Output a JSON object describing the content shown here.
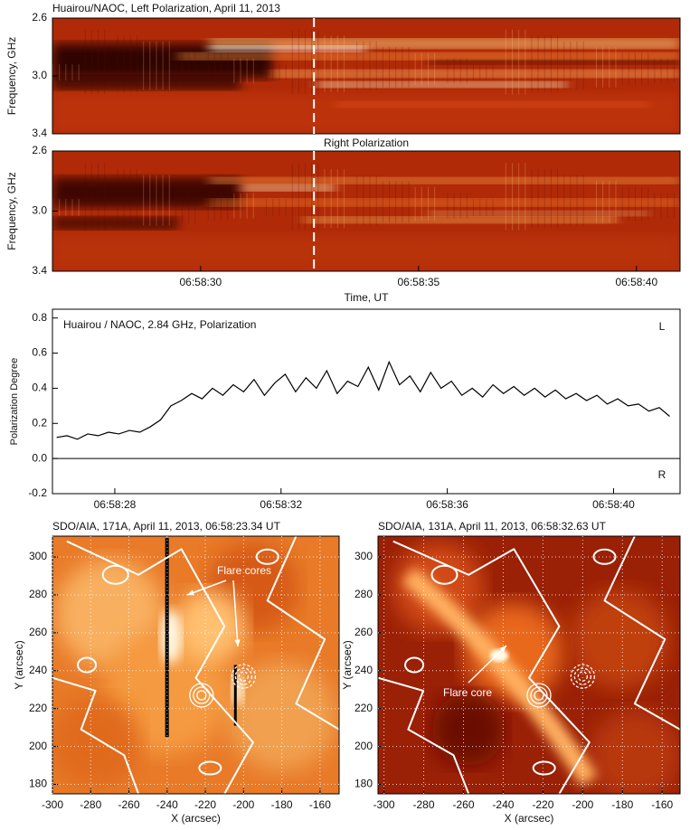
{
  "chart_data": [
    {
      "type": "heatmap",
      "title": "Huairou/NAOC, Left Polarization, April 11, 2013",
      "y_label": "Frequency, GHz",
      "ylim": [
        3.4,
        2.6
      ],
      "yticks": [
        2.6,
        {
          "value": 3,
          "label": "3.0"
        },
        3.4
      ],
      "xlim": [
        26.6,
        41.0
      ],
      "vline": 32.6
    },
    {
      "type": "heatmap",
      "title": "Right Polarization",
      "y_label": "Frequency, GHz",
      "x_label": "Time, UT",
      "ylim": [
        3.4,
        2.6
      ],
      "yticks": [
        2.6,
        {
          "value": 3,
          "label": "3.0"
        },
        3.4
      ],
      "xlim": [
        26.6,
        41.0
      ],
      "xticks": [
        {
          "value": 30,
          "label": "06:58:30"
        },
        {
          "value": 35,
          "label": "06:58:35"
        },
        {
          "value": 40,
          "label": "06:58:40"
        }
      ],
      "vline": 32.6
    },
    {
      "type": "line",
      "title": "Huairou / NAOC, 2.84 GHz, Polarization",
      "y_label": "Polarization Degree",
      "annotations": [
        "L",
        "R"
      ],
      "color": "#000000",
      "ylim": [
        -0.2,
        0.85
      ],
      "yticks": [
        -0.2,
        {
          "value": 0,
          "label": "0.0"
        },
        0.2,
        0.4,
        0.6,
        0.8
      ],
      "xlim": [
        26.5,
        41.6
      ],
      "xticks": [
        {
          "value": 28,
          "label": "06:58:28"
        },
        {
          "value": 32,
          "label": "06:58:32"
        },
        {
          "value": 36,
          "label": "06:58:36"
        },
        {
          "value": 40,
          "label": "06:58:40"
        }
      ],
      "x": [
        26.6,
        26.85,
        27.1,
        27.35,
        27.6,
        27.85,
        28.1,
        28.35,
        28.6,
        28.85,
        29.1,
        29.35,
        29.6,
        29.85,
        30.1,
        30.35,
        30.6,
        30.85,
        31.1,
        31.35,
        31.6,
        31.85,
        32.1,
        32.35,
        32.6,
        32.85,
        33.1,
        33.35,
        33.6,
        33.85,
        34.1,
        34.35,
        34.6,
        34.85,
        35.1,
        35.35,
        35.6,
        35.85,
        36.1,
        36.35,
        36.6,
        36.85,
        37.1,
        37.35,
        37.6,
        37.85,
        38.1,
        38.35,
        38.6,
        38.85,
        39.1,
        39.35,
        39.6,
        39.85,
        40.1,
        40.35,
        40.6,
        40.85,
        41.1,
        41.35
      ],
      "values": [
        0.12,
        0.13,
        0.11,
        0.14,
        0.13,
        0.15,
        0.14,
        0.16,
        0.15,
        0.18,
        0.22,
        0.3,
        0.33,
        0.37,
        0.34,
        0.4,
        0.36,
        0.42,
        0.38,
        0.45,
        0.36,
        0.43,
        0.48,
        0.38,
        0.46,
        0.4,
        0.5,
        0.37,
        0.44,
        0.41,
        0.52,
        0.39,
        0.55,
        0.42,
        0.47,
        0.38,
        0.49,
        0.4,
        0.44,
        0.36,
        0.4,
        0.35,
        0.42,
        0.37,
        0.41,
        0.36,
        0.4,
        0.35,
        0.39,
        0.34,
        0.37,
        0.33,
        0.36,
        0.31,
        0.34,
        0.3,
        0.31,
        0.27,
        0.29,
        0.24
      ]
    },
    {
      "type": "image",
      "title": "SDO/AIA, 171A, April 11, 2013, 06:58:23.34 UT",
      "x_label": "X (arcsec)",
      "y_label": "Y (arcsec)",
      "annotation": "Flare cores",
      "grid": true,
      "xlim": [
        -300,
        -150
      ],
      "xticks": [
        -300,
        -280,
        -260,
        -240,
        -220,
        -200,
        -180,
        -160
      ],
      "ylim": [
        175,
        311
      ],
      "yticks": [
        180,
        200,
        220,
        240,
        260,
        280,
        300
      ]
    },
    {
      "type": "image",
      "title": "SDO/AIA, 131A, April 11, 2013, 06:58:32.63 UT",
      "x_label": "X (arcsec)",
      "y_label": "Y (arcsec)",
      "annotation": "Flare core",
      "grid": true,
      "xlim": [
        -303,
        -151
      ],
      "xticks": [
        -300,
        -280,
        -260,
        -240,
        -220,
        -200,
        -180,
        -160
      ],
      "ylim": [
        175,
        311
      ],
      "yticks": [
        180,
        200,
        220,
        240,
        260,
        280,
        300
      ]
    }
  ]
}
